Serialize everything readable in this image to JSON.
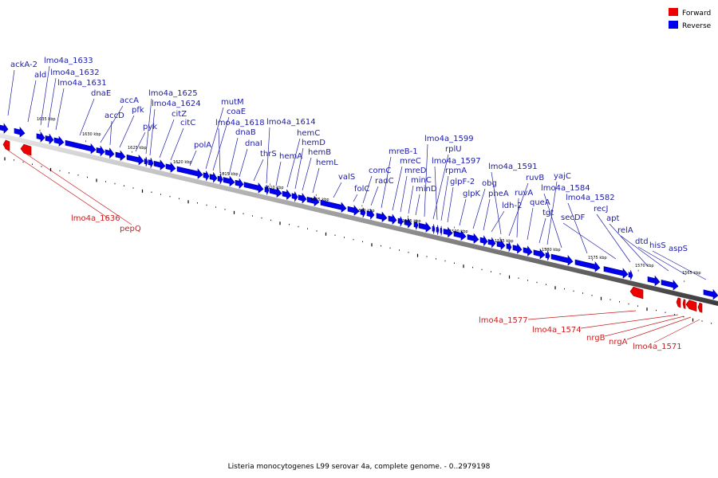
{
  "legend": [
    {
      "label": "Forward",
      "color": "#ee0000"
    },
    {
      "label": "Reverse",
      "color": "#0000ee"
    }
  ],
  "caption": "Listeria monocytogenes L99 serovar 4a, complete genome. - 0..2979198",
  "ticks": [
    "1635 kbp",
    "1630 kbp",
    "1625 kbp",
    "1620 kbp",
    "1615 kbp",
    "1610 kbp",
    "1605 kbp",
    "1600 kbp",
    "1595 kbp",
    "1590 kbp",
    "1585 kbp",
    "1580 kbp",
    "1575 kbp",
    "1570 kbp",
    "1565 kbp"
  ],
  "reverse_genes": [
    "ackA-2",
    "ald",
    "lmo4a_1633",
    "lmo4a_1632",
    "lmo4a_1631",
    "dnaE",
    "accA",
    "accD",
    "pfk",
    "pyk",
    "lmo4a_1625",
    "lmo4a_1624",
    "citZ",
    "citC",
    "polA",
    "mutM",
    "coaE",
    "lmo4a_1618",
    "dnaB",
    "dnaI",
    "thrS",
    "lmo4a_1614",
    "hemA",
    "hemC",
    "hemD",
    "hemB",
    "hemL",
    "valS",
    "folC",
    "comC",
    "radC",
    "mreB-1",
    "mreC",
    "mreD",
    "minC",
    "minD",
    "lmo4a_1599",
    "rplU",
    "lmo4a_1597",
    "rpmA",
    "glpF-2",
    "glpK",
    "obg",
    "pheA",
    "ldh-2",
    "lmo4a_1591",
    "ruvB",
    "ruvA",
    "queA",
    "tgt",
    "yajC",
    "lmo4a_1584",
    "lmo4a_1582",
    "secDF",
    "recJ",
    "apt",
    "relA",
    "dtd",
    "hisS",
    "aspS"
  ],
  "forward_genes": [
    "lmo4a_1636",
    "pepQ",
    "lmo4a_1577",
    "lmo4a_1574",
    "nrgB",
    "nrgA",
    "lmo4a_1571"
  ]
}
